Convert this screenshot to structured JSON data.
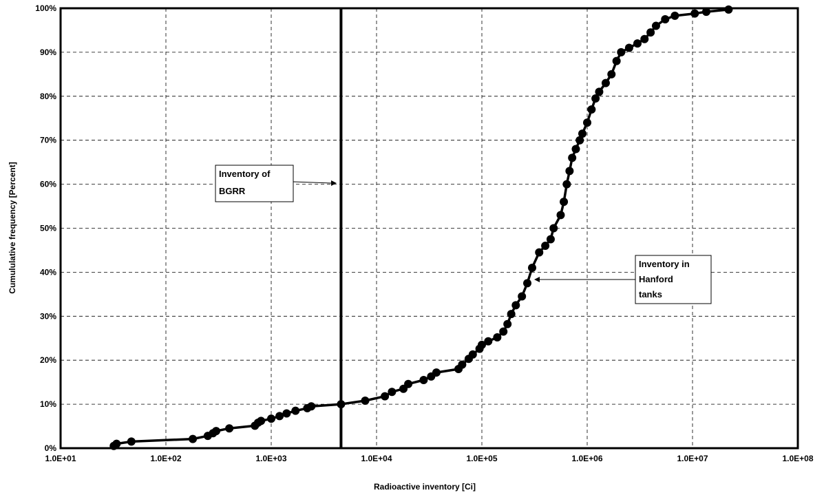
{
  "chart_data": {
    "type": "line",
    "xlabel": "Radioactive inventory [Ci]",
    "ylabel": "Cumululative frequency [Percent]",
    "x_scale": "log",
    "xlim": [
      10,
      100000000
    ],
    "ylim": [
      0,
      100
    ],
    "x_ticks": [
      "1.0E+01",
      "1.0E+02",
      "1.0E+03",
      "1.0E+04",
      "1.0E+05",
      "1.0E+06",
      "1.0E+07",
      "1.0E+08"
    ],
    "y_ticks": [
      "0%",
      "10%",
      "20%",
      "30%",
      "40%",
      "50%",
      "60%",
      "70%",
      "80%",
      "90%",
      "100%"
    ],
    "grid": true,
    "legend": "none",
    "series": [
      {
        "markers": true,
        "color": "#000000",
        "x": [
          32,
          34,
          47,
          180,
          250,
          280,
          300,
          400,
          700,
          750,
          800,
          1000,
          1200,
          1400,
          1700,
          2200,
          2400,
          4600,
          7800,
          12000,
          14000,
          18000,
          20000,
          28000,
          33000,
          37000,
          60000,
          65000,
          75000,
          82000,
          95000,
          100000,
          115000,
          140000,
          160000,
          175000,
          190000,
          210000,
          240000,
          270000,
          300000,
          350000,
          400000,
          450000,
          480000,
          560000,
          600000,
          640000,
          680000,
          720000,
          780000,
          850000,
          900000,
          1000000,
          1100000,
          1200000,
          1300000,
          1500000,
          1700000,
          1900000,
          2100000,
          2500000,
          3000000,
          3500000,
          4000000,
          4500000,
          5500000,
          6800000,
          10500000,
          13500000,
          22000000
        ],
        "y": [
          0.5,
          1.0,
          1.5,
          2.1,
          2.8,
          3.4,
          3.9,
          4.5,
          5.1,
          5.8,
          6.2,
          6.7,
          7.3,
          7.9,
          8.5,
          9.1,
          9.5,
          10.0,
          10.8,
          11.8,
          12.8,
          13.5,
          14.6,
          15.5,
          16.3,
          17.2,
          18.0,
          19.0,
          20.3,
          21.3,
          22.6,
          23.5,
          24.3,
          25.2,
          26.5,
          28.2,
          30.5,
          32.5,
          34.5,
          37.5,
          41.0,
          44.5,
          46.0,
          47.5,
          50.0,
          53.0,
          56.0,
          60.0,
          63.0,
          66.0,
          68.0,
          70.0,
          71.5,
          74.0,
          77.0,
          79.5,
          81.0,
          83.0,
          85.0,
          88.0,
          90.0,
          91.0,
          92.0,
          93.0,
          94.5,
          96.0,
          97.5,
          98.3,
          98.8,
          99.2,
          99.7
        ]
      }
    ],
    "reference_line": {
      "x": 4600
    },
    "annotations": [
      {
        "text_lines": [
          "Inventory of",
          "BGRR"
        ]
      },
      {
        "text_lines": [
          "Inventory in",
          "Hanford",
          "tanks"
        ]
      }
    ]
  }
}
